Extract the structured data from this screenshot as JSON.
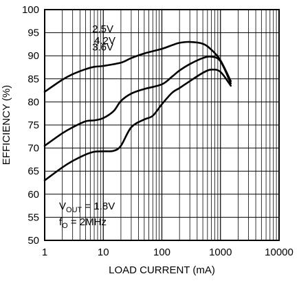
{
  "chart_data": {
    "type": "line",
    "title": "",
    "xlabel": "LOAD CURRENT (mA)",
    "ylabel": "EFFICIENCY (%)",
    "xscale": "log",
    "xlim": [
      1,
      10000
    ],
    "ylim": [
      50,
      100
    ],
    "grid": true,
    "x_ticks": [
      1,
      10,
      100,
      1000,
      10000
    ],
    "x_tick_labels": [
      "1",
      "10",
      "100",
      "1000",
      "10000"
    ],
    "y_ticks": [
      50,
      55,
      60,
      65,
      70,
      75,
      80,
      85,
      90,
      95,
      100
    ],
    "y_tick_labels": [
      "50",
      "55",
      "60",
      "65",
      "70",
      "75",
      "80",
      "85",
      "90",
      "95",
      "100"
    ],
    "series": [
      {
        "name": "2.5V",
        "x": [
          1,
          2,
          3,
          5,
          7,
          10,
          20,
          30,
          50,
          100,
          150,
          200,
          300,
          500,
          700,
          1000,
          1500
        ],
        "y": [
          82.2,
          84.8,
          86.0,
          87.1,
          87.6,
          87.8,
          88.5,
          89.5,
          90.5,
          91.5,
          92.3,
          92.8,
          93.0,
          92.6,
          91.3,
          89.0,
          84.5
        ]
      },
      {
        "name": "3.6V",
        "x": [
          1,
          2,
          3,
          5,
          7,
          10,
          15,
          20,
          30,
          50,
          100,
          150,
          200,
          300,
          500,
          700,
          1000,
          1500
        ],
        "y": [
          70.5,
          73.2,
          74.5,
          75.8,
          76.0,
          76.5,
          78.0,
          80.2,
          81.8,
          82.8,
          83.8,
          85.5,
          86.8,
          88.2,
          89.5,
          89.8,
          88.8,
          84.0
        ]
      },
      {
        "name": "4.2V",
        "x": [
          1,
          2,
          3,
          5,
          7,
          10,
          15,
          20,
          30,
          50,
          70,
          100,
          150,
          200,
          300,
          500,
          700,
          1000,
          1500
        ],
        "y": [
          63.0,
          65.8,
          67.2,
          68.6,
          69.2,
          69.3,
          69.4,
          70.5,
          74.5,
          76.2,
          77.0,
          79.5,
          82.0,
          83.0,
          84.5,
          86.3,
          87.0,
          86.5,
          83.5
        ]
      }
    ],
    "series_labels": [
      {
        "text": "2.5V",
        "x": 300,
        "y": 93.0
      },
      {
        "text": "3.6V",
        "x": 300,
        "y": 88.2
      },
      {
        "text": "4.2V",
        "x": 300,
        "y": 84.5
      }
    ],
    "annotation": {
      "line1_main": "V",
      "line1_sub": "OUT",
      "line1_rest": " = 1.8V",
      "line2_main": "f",
      "line2_sub": "O",
      "line2_rest": " = 2MHz"
    },
    "colors": {
      "line": "#000000",
      "grid": "#000000",
      "background": "#ffffff"
    }
  }
}
